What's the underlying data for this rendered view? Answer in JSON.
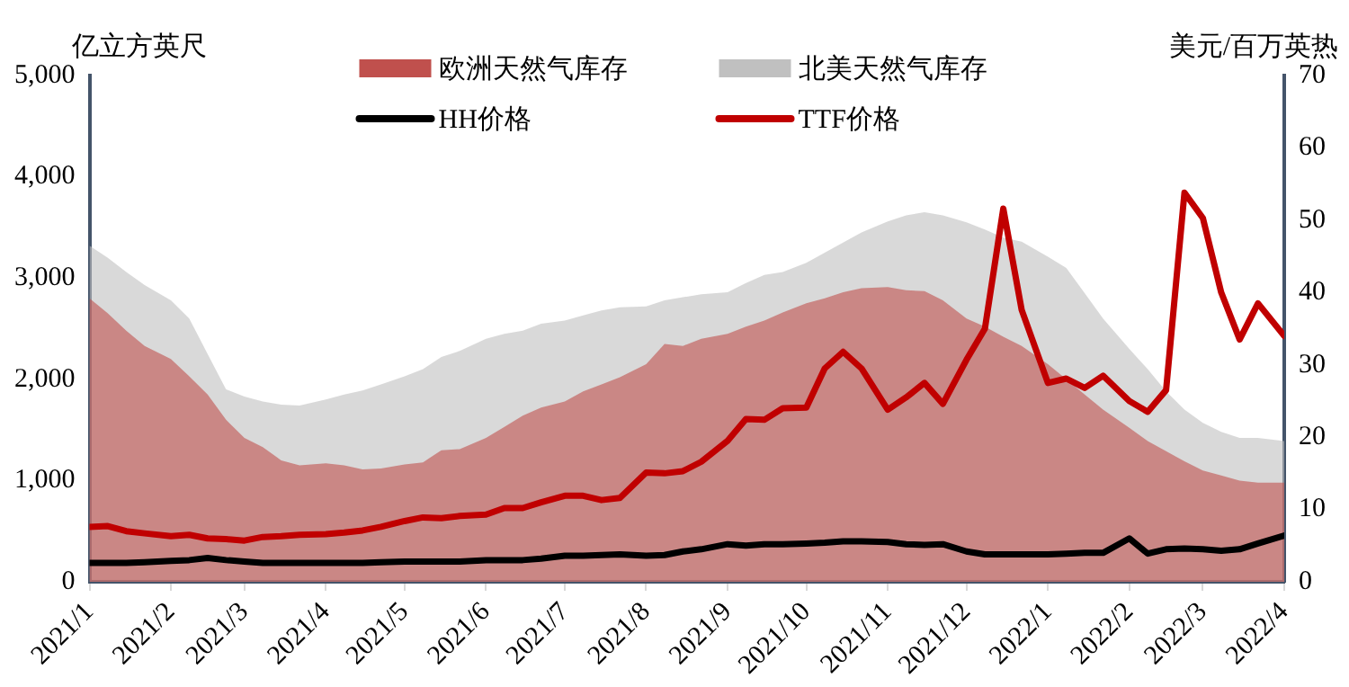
{
  "chart_data": {
    "type": "area",
    "ylabel": "亿立方英尺",
    "y2label": "美元/百万英热",
    "x": [
      "2021-01-01",
      "2021-01-08",
      "2021-01-15",
      "2021-01-22",
      "2021-02-01",
      "2021-02-08",
      "2021-02-15",
      "2021-02-22",
      "2021-03-01",
      "2021-03-08",
      "2021-03-15",
      "2021-03-22",
      "2021-04-01",
      "2021-04-08",
      "2021-04-15",
      "2021-04-22",
      "2021-05-01",
      "2021-05-08",
      "2021-05-15",
      "2021-05-22",
      "2021-06-01",
      "2021-06-08",
      "2021-06-15",
      "2021-06-22",
      "2021-07-01",
      "2021-07-08",
      "2021-07-15",
      "2021-07-22",
      "2021-08-01",
      "2021-08-08",
      "2021-08-15",
      "2021-08-22",
      "2021-09-01",
      "2021-09-08",
      "2021-09-15",
      "2021-09-22",
      "2021-10-01",
      "2021-10-08",
      "2021-10-15",
      "2021-10-22",
      "2021-11-01",
      "2021-11-08",
      "2021-11-15",
      "2021-11-22",
      "2021-12-01",
      "2021-12-08",
      "2021-12-15",
      "2021-12-22",
      "2022-01-01",
      "2022-01-08",
      "2022-01-15",
      "2022-01-22",
      "2022-02-01",
      "2022-02-08",
      "2022-02-15",
      "2022-02-22",
      "2022-03-01",
      "2022-03-08",
      "2022-03-15",
      "2022-03-22",
      "2022-04-01"
    ],
    "series": [
      {
        "name": "北美天然气库存",
        "color": "#c0c0c0",
        "values": [
          3320,
          3200,
          3060,
          2930,
          2780,
          2600,
          2250,
          1900,
          1830,
          1780,
          1750,
          1740,
          1800,
          1850,
          1890,
          1950,
          2030,
          2100,
          2220,
          2280,
          2400,
          2450,
          2480,
          2550,
          2580,
          2630,
          2680,
          2710,
          2720,
          2780,
          2810,
          2840,
          2860,
          2950,
          3030,
          3060,
          3150,
          3250,
          3350,
          3450,
          3560,
          3620,
          3650,
          3620,
          3550,
          3480,
          3400,
          3360,
          3210,
          3100,
          2850,
          2600,
          2300,
          2100,
          1880,
          1700,
          1570,
          1480,
          1420,
          1420,
          1390
        ]
      },
      {
        "name": "欧洲天然气库存",
        "color": "#c0504d",
        "values": [
          2800,
          2650,
          2480,
          2330,
          2200,
          2030,
          1850,
          1600,
          1420,
          1330,
          1200,
          1150,
          1170,
          1150,
          1110,
          1120,
          1160,
          1180,
          1300,
          1310,
          1420,
          1530,
          1640,
          1720,
          1780,
          1880,
          1950,
          2020,
          2150,
          2350,
          2330,
          2400,
          2450,
          2520,
          2580,
          2660,
          2750,
          2800,
          2860,
          2900,
          2910,
          2880,
          2870,
          2780,
          2600,
          2520,
          2420,
          2330,
          2150,
          2000,
          1850,
          1700,
          1520,
          1390,
          1290,
          1190,
          1100,
          1050,
          1000,
          980,
          980
        ]
      },
      {
        "name": "HH价格",
        "type": "line",
        "axis": "y2",
        "color": "#000000",
        "values": [
          2.6,
          2.6,
          2.6,
          2.7,
          2.9,
          3.0,
          3.3,
          3.0,
          2.8,
          2.6,
          2.6,
          2.6,
          2.6,
          2.6,
          2.6,
          2.7,
          2.8,
          2.8,
          2.8,
          2.8,
          3.0,
          3.0,
          3.0,
          3.2,
          3.6,
          3.6,
          3.7,
          3.8,
          3.6,
          3.7,
          4.2,
          4.5,
          5.2,
          5.0,
          5.2,
          5.2,
          5.3,
          5.4,
          5.6,
          5.6,
          5.5,
          5.2,
          5.1,
          5.2,
          4.2,
          3.8,
          3.8,
          3.8,
          3.8,
          3.9,
          4.0,
          4.0,
          6.0,
          3.9,
          4.5,
          4.6,
          4.5,
          4.3,
          4.5,
          5.3,
          6.4
        ]
      },
      {
        "name": "TTF价格",
        "type": "line",
        "axis": "y2",
        "color": "#c00000",
        "values": [
          7.6,
          7.7,
          7.0,
          6.7,
          6.3,
          6.5,
          6.0,
          5.9,
          5.7,
          6.2,
          6.3,
          6.5,
          6.6,
          6.8,
          7.1,
          7.6,
          8.4,
          8.9,
          8.8,
          9.1,
          9.3,
          10.2,
          10.2,
          11.0,
          11.9,
          11.9,
          11.3,
          11.6,
          15.1,
          15.0,
          15.3,
          16.6,
          19.5,
          22.5,
          22.4,
          24.0,
          24.1,
          29.5,
          31.8,
          29.5,
          23.8,
          25.5,
          27.5,
          24.6,
          30.7,
          35.0,
          51.6,
          37.6,
          27.5,
          28.1,
          26.8,
          28.5,
          25.0,
          23.5,
          26.5,
          53.8,
          50.3,
          40.0,
          33.5,
          38.5,
          34.0
        ]
      }
    ],
    "xlim": [
      "2021-01-01",
      "2022-04-01"
    ],
    "xticks": [
      {
        "value": "2021-01-01",
        "label": "2021/1"
      },
      {
        "value": "2021-02-01",
        "label": "2021/2"
      },
      {
        "value": "2021-03-01",
        "label": "2021/3"
      },
      {
        "value": "2021-04-01",
        "label": "2021/4"
      },
      {
        "value": "2021-05-01",
        "label": "2021/5"
      },
      {
        "value": "2021-06-01",
        "label": "2021/6"
      },
      {
        "value": "2021-07-01",
        "label": "2021/7"
      },
      {
        "value": "2021-08-01",
        "label": "2021/8"
      },
      {
        "value": "2021-09-01",
        "label": "2021/9"
      },
      {
        "value": "2021-10-01",
        "label": "2021/10"
      },
      {
        "value": "2021-11-01",
        "label": "2021/11"
      },
      {
        "value": "2021-12-01",
        "label": "2021/12"
      },
      {
        "value": "2022-01-01",
        "label": "2022/1"
      },
      {
        "value": "2022-02-01",
        "label": "2022/2"
      },
      {
        "value": "2022-03-01",
        "label": "2022/3"
      },
      {
        "value": "2022-04-01",
        "label": "2022/4"
      }
    ],
    "ylim": [
      0,
      5000
    ],
    "yticks": [
      0,
      {
        "value": 1000,
        "label": "1,000"
      },
      {
        "value": 2000,
        "label": "2,000"
      },
      {
        "value": 3000,
        "label": "3,000"
      },
      {
        "value": 4000,
        "label": "4,000"
      },
      {
        "value": 5000,
        "label": "5,000"
      }
    ],
    "y2lim": [
      0,
      70
    ],
    "y2ticks": [
      0,
      10,
      20,
      30,
      40,
      50,
      60,
      70
    ],
    "grid": false,
    "legend": "top"
  }
}
